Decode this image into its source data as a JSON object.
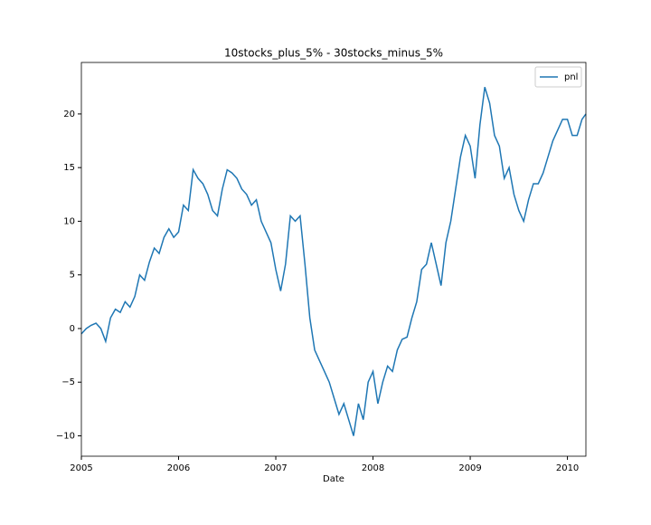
{
  "chart_data": {
    "type": "line",
    "title": "10stocks_plus_5% - 30stocks_minus_5%",
    "xlabel": "Date",
    "x": [
      2005.0,
      2005.05,
      2005.1,
      2005.15,
      2005.2,
      2005.25,
      2005.3,
      2005.35,
      2005.4,
      2005.45,
      2005.5,
      2005.55,
      2005.6,
      2005.65,
      2005.7,
      2005.75,
      2005.8,
      2005.85,
      2005.9,
      2005.95,
      2006.0,
      2006.05,
      2006.1,
      2006.15,
      2006.2,
      2006.25,
      2006.3,
      2006.35,
      2006.4,
      2006.45,
      2006.5,
      2006.55,
      2006.6,
      2006.65,
      2006.7,
      2006.75,
      2006.8,
      2006.85,
      2006.9,
      2006.95,
      2007.0,
      2007.05,
      2007.1,
      2007.15,
      2007.2,
      2007.25,
      2007.3,
      2007.35,
      2007.4,
      2007.45,
      2007.5,
      2007.55,
      2007.6,
      2007.65,
      2007.7,
      2007.75,
      2007.8,
      2007.85,
      2007.9,
      2007.95,
      2008.0,
      2008.05,
      2008.1,
      2008.15,
      2008.2,
      2008.25,
      2008.3,
      2008.35,
      2008.4,
      2008.45,
      2008.5,
      2008.55,
      2008.6,
      2008.65,
      2008.7,
      2008.75,
      2008.8,
      2008.85,
      2008.9,
      2008.95,
      2009.0,
      2009.05,
      2009.1,
      2009.15,
      2009.2,
      2009.25,
      2009.3,
      2009.35,
      2009.4,
      2009.45,
      2009.5,
      2009.55,
      2009.6,
      2009.65,
      2009.7,
      2009.75,
      2009.8,
      2009.85,
      2009.9,
      2009.95,
      2010.0,
      2010.05,
      2010.1,
      2010.15,
      2010.19
    ],
    "series": [
      {
        "name": "pnl",
        "color": "#1f77b4",
        "values": [
          -0.5,
          0,
          0.3,
          0.5,
          0,
          -1.2,
          1,
          1.8,
          1.5,
          2.5,
          2,
          3,
          5,
          4.5,
          6.2,
          7.5,
          7,
          8.5,
          9.3,
          8.5,
          9,
          11.5,
          11,
          14.8,
          14,
          13.5,
          12.5,
          11,
          10.5,
          13,
          14.8,
          14.5,
          14,
          13,
          12.5,
          11.5,
          12,
          10,
          9,
          8,
          5.5,
          3.5,
          6,
          10.5,
          10,
          10.5,
          6,
          1,
          -2,
          -3,
          -4,
          -5,
          -6.5,
          -8,
          -7,
          -8.5,
          -10,
          -7,
          -8.5,
          -5,
          -4,
          -7,
          -5,
          -3.5,
          -4,
          -2,
          -1,
          -0.8,
          1,
          2.5,
          5.5,
          6,
          8,
          6,
          4,
          8,
          10,
          13,
          16,
          18,
          17,
          14,
          19,
          22.5,
          21,
          18,
          17,
          14,
          15,
          12.5,
          11,
          10,
          12,
          13.5,
          13.5,
          14.5,
          16,
          17.5,
          18.5,
          19.5,
          19.5,
          18,
          18,
          19.5,
          20
        ]
      }
    ],
    "xlim": [
      2005,
      2010.19
    ],
    "xticks": [
      2005,
      2006,
      2007,
      2008,
      2009,
      2010
    ],
    "ylim": [
      -11.9,
      24.8
    ],
    "yticks": [
      {
        "value": -10,
        "label": "−10"
      },
      {
        "value": -5,
        "label": "−5"
      },
      0,
      5,
      10,
      15,
      20
    ],
    "legend": "upper right"
  }
}
